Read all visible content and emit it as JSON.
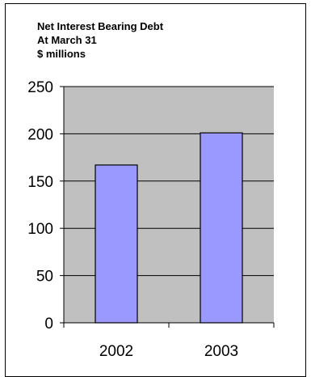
{
  "chart_data": {
    "type": "bar",
    "title_lines": [
      "Net Interest Bearing Debt",
      "At March 31",
      "$ millions"
    ],
    "categories": [
      "2002",
      "2003"
    ],
    "values": [
      167,
      201
    ],
    "ylim": [
      0,
      250
    ],
    "yticks": [
      0,
      50,
      100,
      150,
      200,
      250
    ],
    "grid": true,
    "legend": "none",
    "colors": {
      "bar_fill": "#9999ff",
      "plot_background": "#c0c0c0",
      "gridline": "#000000",
      "bar_stroke": "#000000"
    }
  }
}
